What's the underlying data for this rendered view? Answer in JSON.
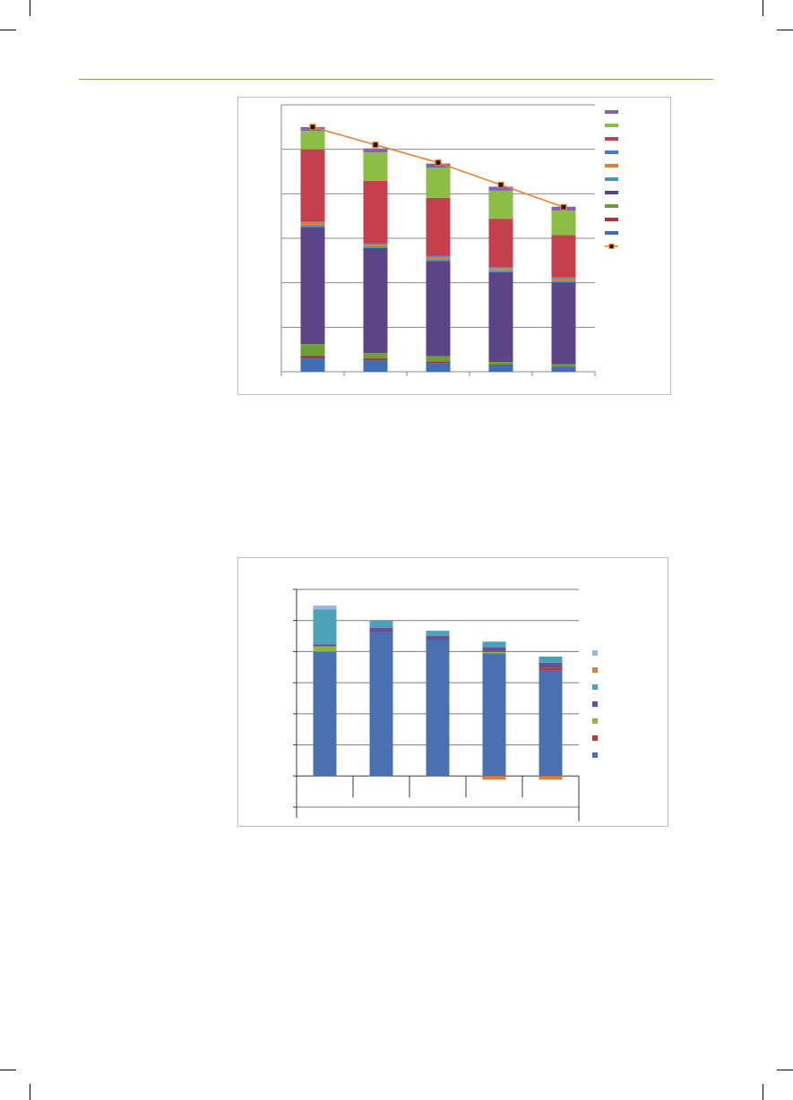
{
  "colors": {
    "rule": "#6db33f",
    "chart1_series": [
      "#3f6eb3",
      "#a83238",
      "#6e9f37",
      "#5b4587",
      "#4596b5",
      "#e27d30",
      "#4b76c2",
      "#c5404c",
      "#8cbd45",
      "#8363ad"
    ],
    "chart1_line": "#e8822f",
    "chart2_series": [
      "#4a6fb3",
      "#b33a3a",
      "#8cb840",
      "#6a4f98",
      "#4aa1b8",
      "#e0802f",
      "#9ab6de"
    ]
  },
  "chart_data": [
    {
      "type": "bar",
      "stacked": true,
      "categories": [
        "",
        "",
        "",
        "",
        ""
      ],
      "ylim": [
        0,
        6
      ],
      "grid": true,
      "legend_position": "right",
      "series": [
        {
          "values": [
            0.3,
            0.26,
            0.2,
            0.14,
            0.1
          ]
        },
        {
          "values": [
            0.06,
            0.04,
            0.03,
            0.02,
            0.01
          ]
        },
        {
          "values": [
            0.26,
            0.12,
            0.12,
            0.06,
            0.06
          ]
        },
        {
          "values": [
            2.63,
            2.36,
            2.14,
            2.02,
            1.84
          ]
        },
        {
          "values": [
            0.05,
            0.04,
            0.04,
            0.04,
            0.04
          ]
        },
        {
          "values": [
            0.06,
            0.05,
            0.05,
            0.05,
            0.05
          ]
        },
        {
          "values": [
            0.02,
            0.02,
            0.02,
            0.02,
            0.02
          ]
        },
        {
          "values": [
            1.62,
            1.4,
            1.31,
            1.09,
            0.95
          ]
        },
        {
          "values": [
            0.41,
            0.64,
            0.68,
            0.63,
            0.55
          ]
        },
        {
          "values": [
            0.09,
            0.09,
            0.09,
            0.09,
            0.09
          ]
        }
      ],
      "line": {
        "values": [
          5.5,
          5.1,
          4.7,
          4.2,
          3.7
        ]
      }
    },
    {
      "type": "bar",
      "stacked": true,
      "categories": [
        "",
        "",
        "",
        "",
        ""
      ],
      "ylim": [
        -1,
        6
      ],
      "grid": true,
      "legend_position": "right",
      "series": [
        {
          "values": [
            4.0,
            4.62,
            4.36,
            3.94,
            3.39
          ]
        },
        {
          "values": [
            0.0,
            0.0,
            0.0,
            0.0,
            0.1
          ]
        },
        {
          "values": [
            0.17,
            0.0,
            0.0,
            0.05,
            0.0
          ]
        },
        {
          "values": [
            0.06,
            0.15,
            0.15,
            0.15,
            0.15
          ]
        },
        {
          "values": [
            1.13,
            0.22,
            0.16,
            0.18,
            0.2
          ]
        },
        {
          "values": [
            0.0,
            0.0,
            0.0,
            -0.12,
            -0.12
          ]
        },
        {
          "values": [
            0.12,
            0.0,
            0.0,
            0.0,
            0.0
          ]
        }
      ]
    }
  ]
}
